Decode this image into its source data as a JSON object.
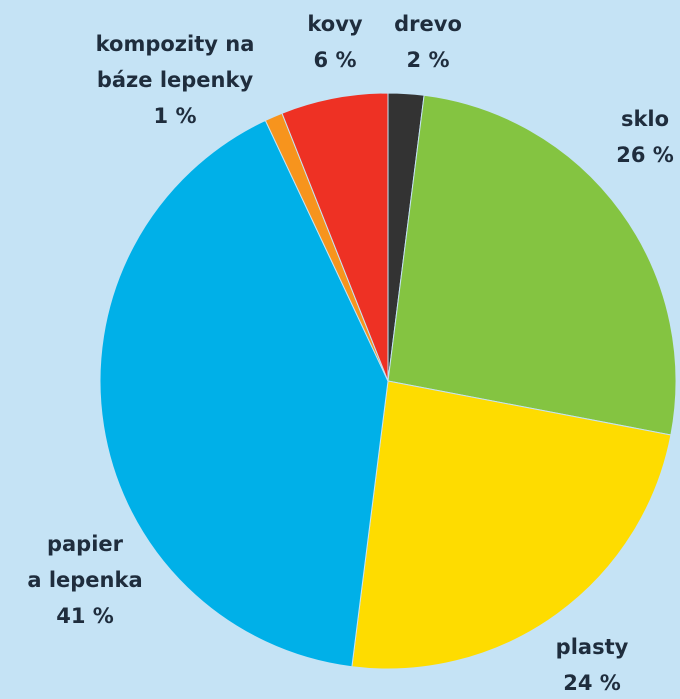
{
  "chart_data": {
    "type": "pie",
    "categories": [
      [
        "drevo"
      ],
      [
        "sklo"
      ],
      [
        "plasty"
      ],
      [
        "papier",
        "a lepenka"
      ],
      [
        "kompozity na",
        "báze lepenky"
      ],
      [
        "kovy"
      ]
    ],
    "values": [
      2,
      26,
      24,
      41,
      1,
      6
    ],
    "value_labels": [
      "2 %",
      "26 %",
      "24 %",
      "41 %",
      "1 %",
      "6 %"
    ],
    "colors": [
      "#333333",
      "#84c441",
      "#fedc00",
      "#00b0e8",
      "#f7941d",
      "#ee3124"
    ]
  }
}
